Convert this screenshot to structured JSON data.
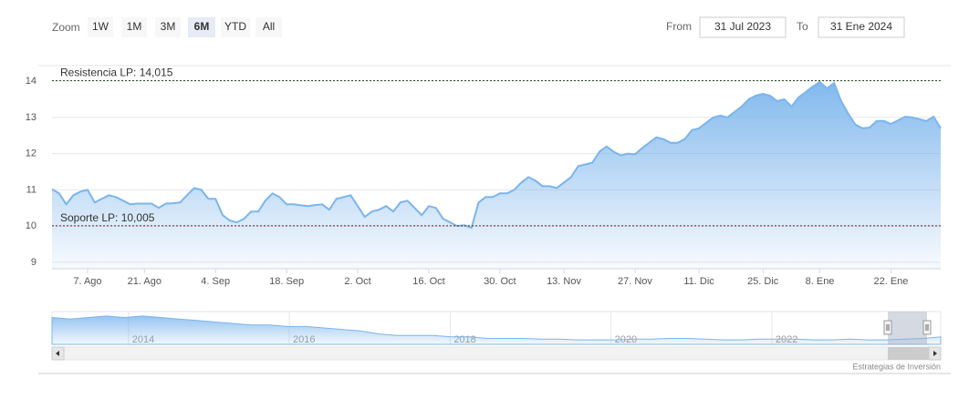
{
  "range_selector": {
    "label": "Zoom",
    "buttons": [
      "1W",
      "1M",
      "3M",
      "6M",
      "YTD",
      "All"
    ],
    "selected": 3
  },
  "date_range": {
    "from_label": "From",
    "from": "31 Jul 2023",
    "to_label": "To",
    "to": "31 Ene 2024"
  },
  "chart_data": {
    "type": "area",
    "categories": [
      null,
      null,
      null,
      null,
      null,
      "7. Ago",
      null,
      null,
      null,
      null,
      null,
      null,
      null,
      "21. Ago",
      null,
      null,
      null,
      null,
      null,
      null,
      null,
      null,
      null,
      "4. Sep",
      null,
      null,
      null,
      null,
      null,
      null,
      null,
      null,
      null,
      "18. Sep",
      null,
      null,
      null,
      null,
      null,
      null,
      null,
      null,
      null,
      "2. Oct",
      null,
      null,
      null,
      null,
      null,
      null,
      null,
      null,
      null,
      "16. Oct",
      null,
      null,
      null,
      null,
      null,
      null,
      null,
      null,
      null,
      "30. Oct",
      null,
      null,
      null,
      null,
      null,
      null,
      null,
      null,
      "13. Nov",
      null,
      null,
      null,
      null,
      null,
      null,
      null,
      null,
      null,
      "27. Nov",
      null,
      null,
      null,
      null,
      null,
      null,
      null,
      null,
      "11. Dic",
      null,
      null,
      null,
      null,
      null,
      null,
      null,
      null,
      "25. Dic",
      null,
      null,
      null,
      null,
      null,
      null,
      null,
      "8. Ene",
      null,
      null,
      null,
      null,
      null,
      null,
      null,
      null,
      null,
      "22. Ene",
      null,
      null,
      null,
      null,
      null,
      null,
      null
    ],
    "values": [
      11.02,
      10.9,
      10.6,
      10.85,
      10.95,
      11.0,
      10.65,
      10.75,
      10.85,
      10.8,
      10.7,
      10.6,
      10.62,
      10.62,
      10.62,
      10.5,
      10.62,
      10.63,
      10.65,
      10.85,
      11.05,
      11.0,
      10.75,
      10.75,
      10.3,
      10.15,
      10.1,
      10.2,
      10.4,
      10.4,
      10.7,
      10.9,
      10.8,
      10.6,
      10.6,
      10.57,
      10.55,
      10.58,
      10.6,
      10.45,
      10.75,
      10.8,
      10.85,
      10.55,
      10.25,
      10.4,
      10.45,
      10.55,
      10.4,
      10.65,
      10.7,
      10.5,
      10.3,
      10.55,
      10.5,
      10.2,
      10.1,
      10.0,
      10.02,
      9.95,
      10.65,
      10.8,
      10.8,
      10.9,
      10.9,
      11.0,
      11.2,
      11.35,
      11.25,
      11.1,
      11.1,
      11.05,
      11.2,
      11.35,
      11.65,
      11.7,
      11.75,
      12.05,
      12.2,
      12.05,
      11.95,
      12.0,
      11.98,
      12.15,
      12.3,
      12.45,
      12.4,
      12.3,
      12.3,
      12.4,
      12.65,
      12.7,
      12.85,
      13.0,
      13.05,
      13.0,
      13.15,
      13.3,
      13.5,
      13.6,
      13.65,
      13.6,
      13.45,
      13.5,
      13.3,
      13.55,
      13.7,
      13.85,
      13.98,
      13.8,
      13.95,
      13.45,
      13.1,
      12.8,
      12.7,
      12.72,
      12.9,
      12.9,
      12.82,
      12.92,
      13.02,
      13.0,
      12.95,
      12.9,
      13.02,
      12.7
    ],
    "color": "#7cb5ec",
    "ylim": [
      8.82,
      14.28
    ],
    "yticks": [
      9,
      10,
      11,
      12,
      13,
      14
    ],
    "grid": true,
    "plot_lines": [
      {
        "value": 14.015,
        "label": "Resistencia LP: 14,015",
        "color": "#2f4f2f"
      },
      {
        "value": 10.005,
        "label": "Soporte LP: 10,005",
        "color": "#6b1f1f"
      }
    ],
    "navigator": {
      "xlim": [
        2013.05,
        2024.1
      ],
      "xticks": [
        2014,
        2016,
        2018,
        2020,
        2022
      ],
      "ylim": [
        8,
        30
      ],
      "values": [
        26,
        25,
        26,
        27,
        26,
        27,
        26,
        25,
        24,
        23,
        22,
        21,
        21,
        20,
        20,
        19,
        18,
        17,
        15,
        14,
        14,
        14,
        13,
        13,
        12,
        12,
        12,
        11.5,
        11.5,
        11,
        11,
        11,
        11.5,
        11.5,
        12,
        12,
        11.5,
        11,
        11,
        11.5,
        11.5,
        11.5,
        11,
        11,
        11.5,
        11,
        11,
        11.5,
        12,
        13
      ]
    }
  },
  "credits": "Estrategias de Inversión"
}
